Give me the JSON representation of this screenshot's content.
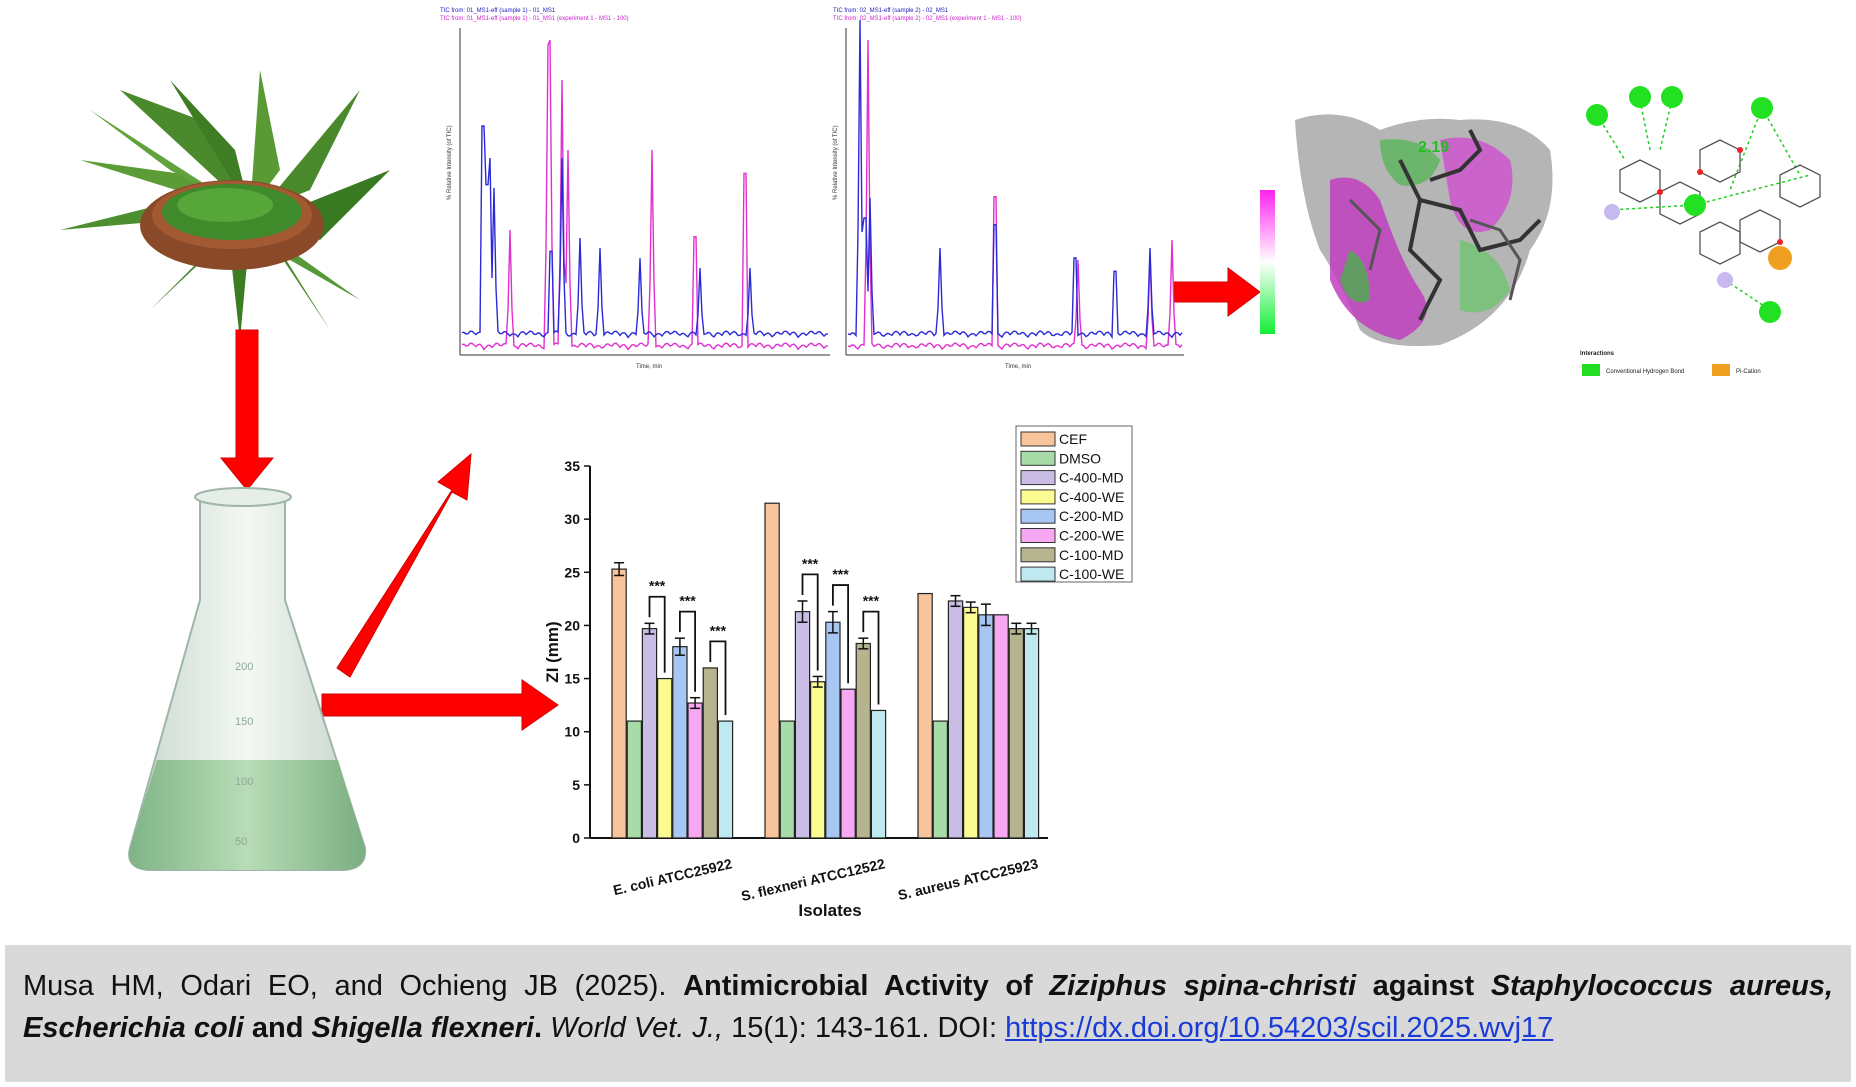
{
  "chromatogram_left": {
    "header_lines": [
      "TIC from: 01_MS1-eff (sample 1) - 01_MS1",
      "TIC from: 01_MS1-eff (sample 1) - 01_MS1 (experiment 1 - MS1 - 100)"
    ],
    "x_unit": "Time, min",
    "y_unit": "% Relative Intensity (of TIC)"
  },
  "chromatogram_right": {
    "header_lines": [
      "TIC from: 02_MS1-eff (sample 2) - 02_MS1",
      "TIC from: 02_MS1-eff (sample 2) - 02_MS1 (experiment 1 - MS1 - 100)"
    ],
    "x_unit": "Time, min",
    "y_unit": "% Relative Intensity (of TIC)"
  },
  "docking": {
    "labels": [
      "2.19"
    ],
    "legend_title": "Interactions",
    "legend_items": [
      {
        "label": "Conventional Hydrogen Bond",
        "color": "#22dd22"
      },
      {
        "label": "Pi-Cation",
        "color": "#f0a020"
      }
    ]
  },
  "flask_scale": [
    "200",
    "150",
    "100",
    "50"
  ],
  "chart_data": {
    "type": "bar",
    "categories": [
      "E. coli ATCC25922",
      "S. flexneri ATCC12522",
      "S. aureus ATCC25923"
    ],
    "xlabel": "Isolates",
    "ylabel": "ZI (mm)",
    "ylim": [
      0,
      35
    ],
    "yticks": [
      0,
      5,
      10,
      15,
      20,
      25,
      30,
      35
    ],
    "legend_position": "top-right",
    "series": [
      {
        "name": "CEF",
        "color": "#f8c49c",
        "values": [
          25.3,
          31.5,
          23.0
        ],
        "errors": [
          0.6,
          0,
          0
        ]
      },
      {
        "name": "DMSO",
        "color": "#a7dca8",
        "values": [
          11.0,
          11.0,
          11.0
        ],
        "errors": [
          0,
          0,
          0
        ]
      },
      {
        "name": "C-400-MD",
        "color": "#c9bde6",
        "values": [
          19.7,
          21.3,
          22.3
        ],
        "errors": [
          0.5,
          1.0,
          0.5
        ]
      },
      {
        "name": "C-400-WE",
        "color": "#fbfb92",
        "values": [
          15.0,
          14.7,
          21.7
        ],
        "errors": [
          0,
          0.5,
          0.5
        ]
      },
      {
        "name": "C-200-MD",
        "color": "#a7c7f2",
        "values": [
          18.0,
          20.3,
          21.0
        ],
        "errors": [
          0.8,
          1.0,
          1.0
        ]
      },
      {
        "name": "C-200-WE",
        "color": "#f7a8f2",
        "values": [
          12.7,
          14.0,
          21.0
        ],
        "errors": [
          0.5,
          0,
          0
        ]
      },
      {
        "name": "C-100-MD",
        "color": "#b5b48e",
        "values": [
          16.0,
          18.3,
          19.7
        ],
        "errors": [
          0,
          0.5,
          0.5
        ]
      },
      {
        "name": "C-100-WE",
        "color": "#bfe9f0",
        "values": [
          11.0,
          12.0,
          19.7
        ],
        "errors": [
          0,
          0,
          0.5
        ]
      }
    ],
    "significance_label": "***",
    "significance_pairs": [
      {
        "category": 0,
        "from": 2,
        "to": 3
      },
      {
        "category": 0,
        "from": 4,
        "to": 5
      },
      {
        "category": 0,
        "from": 6,
        "to": 7
      },
      {
        "category": 1,
        "from": 2,
        "to": 3
      },
      {
        "category": 1,
        "from": 4,
        "to": 5
      },
      {
        "category": 1,
        "from": 6,
        "to": 7
      }
    ]
  },
  "citation": {
    "authors": "Musa HM, Odari EO, and Ochieng JB (2025).",
    "title_1": "Antimicrobial Activity of",
    "title_species_1": "Ziziphus spina-christi",
    "title_2": "against",
    "title_species_2": "Staphylococcus aureus, Escherichia coli",
    "title_3": "and",
    "title_species_3": "Shigella flexneri",
    "title_end": ".",
    "journal": "World Vet. J.,",
    "volume": "15(1): 143-161. DOI:",
    "doi": "https://dx.doi.org/10.54203/scil.2025.wvj17"
  }
}
